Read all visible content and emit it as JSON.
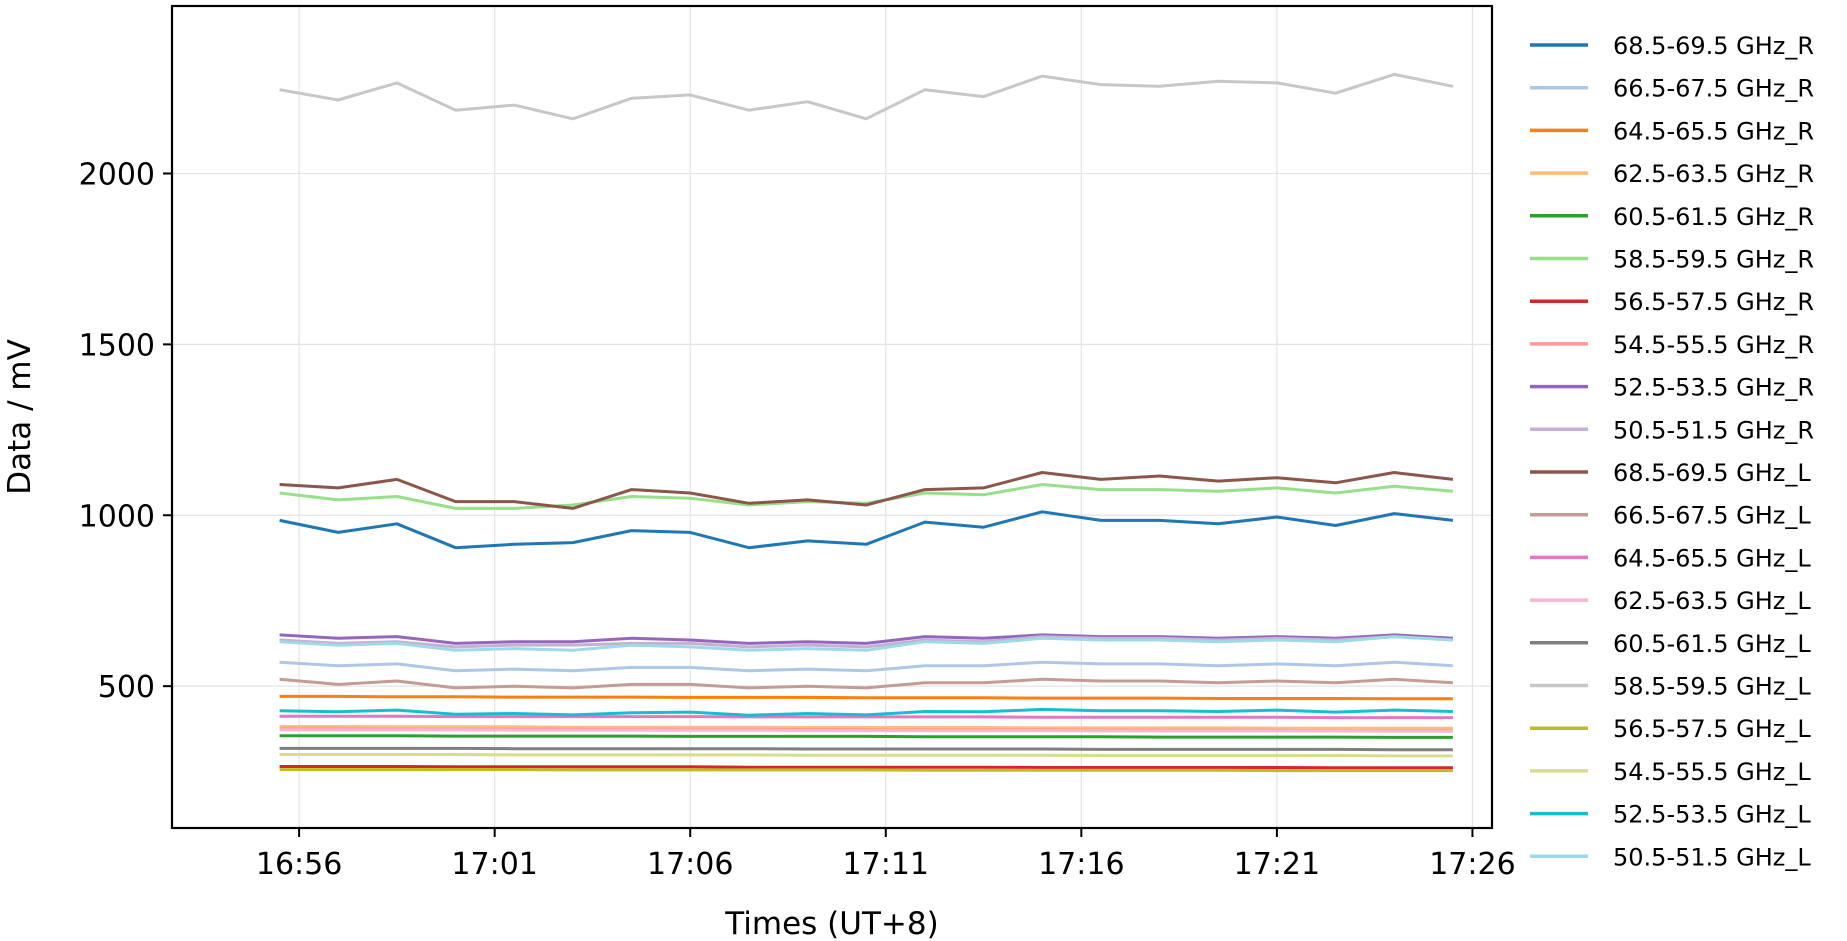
{
  "chart_data": {
    "type": "line",
    "xlabel": "Times (UT+8)",
    "ylabel": "Data / mV",
    "x_ticks": [
      "16:56",
      "17:01",
      "17:06",
      "17:11",
      "17:16",
      "17:21",
      "17:26"
    ],
    "y_ticks": [
      500,
      1000,
      1500,
      2000
    ],
    "xlim": [
      "16:52:45",
      "17:26:30"
    ],
    "ylim": [
      85,
      2490
    ],
    "x": [
      "16:55:30",
      "16:57:00",
      "16:58:30",
      "17:00:00",
      "17:01:30",
      "17:03:00",
      "17:04:30",
      "17:06:00",
      "17:07:30",
      "17:09:00",
      "17:10:30",
      "17:12:00",
      "17:13:30",
      "17:15:00",
      "17:16:30",
      "17:18:00",
      "17:19:30",
      "17:21:00",
      "17:22:30",
      "17:24:00",
      "17:25:30"
    ],
    "grid": true,
    "legend_position": "outside-right",
    "series": [
      {
        "name": "68.5-69.5 GHz_R",
        "color": "#1f77b4",
        "values": [
          985,
          950,
          975,
          905,
          915,
          920,
          955,
          950,
          905,
          925,
          915,
          980,
          965,
          1010,
          985,
          985,
          975,
          995,
          970,
          1005,
          985
        ]
      },
      {
        "name": "66.5-67.5 GHz_R",
        "color": "#aec7e8",
        "values": [
          570,
          560,
          565,
          545,
          550,
          545,
          555,
          555,
          545,
          550,
          545,
          560,
          560,
          570,
          565,
          565,
          560,
          565,
          560,
          570,
          560
        ]
      },
      {
        "name": "64.5-65.5 GHz_R",
        "color": "#ff7f0e",
        "values": [
          470,
          470,
          469,
          469,
          468,
          468,
          468,
          467,
          467,
          467,
          466,
          466,
          466,
          465,
          465,
          465,
          464,
          464,
          464,
          463,
          463
        ]
      },
      {
        "name": "62.5-63.5 GHz_R",
        "color": "#ffbb78",
        "values": [
          382,
          382,
          381,
          381,
          381,
          380,
          380,
          380,
          380,
          379,
          379,
          379,
          379,
          378,
          378,
          378,
          378,
          377,
          377,
          377,
          377
        ]
      },
      {
        "name": "60.5-61.5 GHz_R",
        "color": "#2ca02c",
        "values": [
          355,
          355,
          355,
          354,
          354,
          354,
          354,
          353,
          353,
          353,
          353,
          352,
          352,
          352,
          352,
          351,
          351,
          351,
          351,
          350,
          350
        ]
      },
      {
        "name": "58.5-59.5 GHz_R",
        "color": "#98df8a",
        "values": [
          1065,
          1045,
          1055,
          1020,
          1020,
          1030,
          1055,
          1050,
          1030,
          1040,
          1035,
          1065,
          1060,
          1090,
          1075,
          1075,
          1070,
          1080,
          1065,
          1085,
          1070
        ]
      },
      {
        "name": "56.5-57.5 GHz_R",
        "color": "#d62728",
        "values": [
          265,
          265,
          265,
          264,
          264,
          264,
          264,
          264,
          263,
          263,
          263,
          263,
          263,
          262,
          262,
          262,
          262,
          262,
          261,
          261,
          261
        ]
      },
      {
        "name": "54.5-55.5 GHz_R",
        "color": "#ff9896",
        "values": [
          375,
          375,
          374,
          374,
          374,
          374,
          373,
          373,
          373,
          373,
          372,
          372,
          372,
          372,
          371,
          371,
          371,
          371,
          370,
          370,
          370
        ]
      },
      {
        "name": "52.5-53.5 GHz_R",
        "color": "#9467bd",
        "values": [
          650,
          640,
          645,
          625,
          630,
          630,
          640,
          635,
          625,
          630,
          625,
          645,
          640,
          650,
          645,
          645,
          640,
          645,
          640,
          650,
          640
        ]
      },
      {
        "name": "50.5-51.5 GHz_R",
        "color": "#c5b0d5",
        "values": [
          635,
          625,
          630,
          615,
          620,
          620,
          625,
          625,
          615,
          620,
          615,
          635,
          630,
          645,
          640,
          640,
          635,
          640,
          635,
          645,
          635
        ]
      },
      {
        "name": "68.5-69.5 GHz_L",
        "color": "#8c564b",
        "values": [
          1090,
          1080,
          1105,
          1040,
          1040,
          1020,
          1075,
          1065,
          1035,
          1045,
          1030,
          1075,
          1080,
          1125,
          1105,
          1115,
          1100,
          1110,
          1095,
          1125,
          1105
        ]
      },
      {
        "name": "66.5-67.5 GHz_L",
        "color": "#c49c94",
        "values": [
          520,
          505,
          515,
          495,
          500,
          495,
          505,
          505,
          495,
          500,
          495,
          510,
          510,
          520,
          515,
          515,
          510,
          515,
          510,
          520,
          510
        ]
      },
      {
        "name": "64.5-65.5 GHz_L",
        "color": "#e377c2",
        "values": [
          412,
          412,
          412,
          411,
          411,
          411,
          411,
          411,
          410,
          410,
          410,
          410,
          410,
          409,
          409,
          409,
          409,
          409,
          408,
          408,
          408
        ]
      },
      {
        "name": "62.5-63.5 GHz_L",
        "color": "#f7b6d2",
        "values": [
          372,
          372,
          372,
          372,
          371,
          371,
          371,
          371,
          371,
          370,
          370,
          370,
          370,
          370,
          369,
          369,
          369,
          369,
          369,
          368,
          368
        ]
      },
      {
        "name": "60.5-61.5 GHz_L",
        "color": "#7f7f7f",
        "values": [
          318,
          318,
          318,
          318,
          317,
          317,
          317,
          317,
          317,
          316,
          316,
          316,
          316,
          316,
          315,
          315,
          315,
          315,
          315,
          314,
          314
        ]
      },
      {
        "name": "58.5-59.5 GHz_L",
        "color": "#c7c7c7",
        "values": [
          2245,
          2215,
          2265,
          2185,
          2200,
          2160,
          2220,
          2230,
          2185,
          2210,
          2160,
          2245,
          2225,
          2285,
          2260,
          2255,
          2270,
          2265,
          2235,
          2290,
          2255
        ]
      },
      {
        "name": "56.5-57.5 GHz_L",
        "color": "#bcbd22",
        "values": [
          256,
          256,
          256,
          256,
          256,
          255,
          255,
          255,
          255,
          255,
          255,
          254,
          254,
          254,
          254,
          254,
          254,
          253,
          253,
          253,
          253
        ]
      },
      {
        "name": "54.5-55.5 GHz_L",
        "color": "#dbdb8d",
        "values": [
          300,
          300,
          300,
          300,
          299,
          299,
          299,
          299,
          299,
          298,
          298,
          298,
          298,
          298,
          297,
          297,
          297,
          297,
          297,
          296,
          296
        ]
      },
      {
        "name": "52.5-53.5 GHz_L",
        "color": "#17becf",
        "values": [
          428,
          425,
          430,
          418,
          420,
          416,
          422,
          424,
          415,
          420,
          416,
          426,
          425,
          432,
          428,
          428,
          426,
          430,
          424,
          430,
          426
        ]
      },
      {
        "name": "50.5-51.5 GHz_L",
        "color": "#9edae5",
        "values": [
          630,
          620,
          625,
          605,
          610,
          605,
          620,
          615,
          605,
          610,
          605,
          630,
          625,
          640,
          635,
          635,
          630,
          635,
          630,
          645,
          635
        ]
      }
    ]
  }
}
